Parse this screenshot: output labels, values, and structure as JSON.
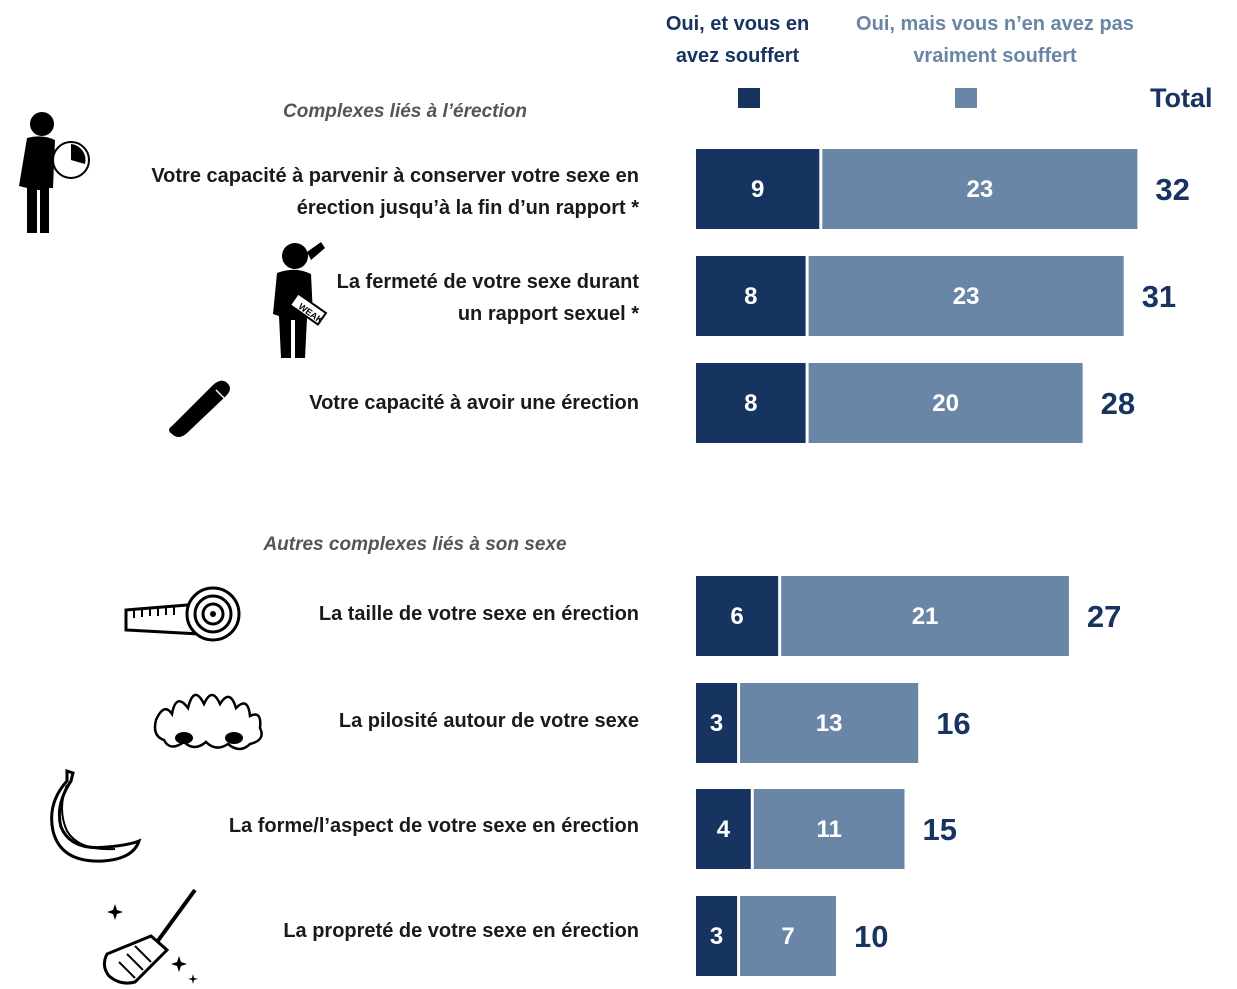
{
  "legend": {
    "series1_label": "Oui, et vous en avez souffert",
    "series2_label": "Oui, mais vous n’en avez pas vraiment souffert",
    "total_label": "Total"
  },
  "sections": [
    {
      "title": "Complexes liés à l’érection"
    },
    {
      "title": "Autres complexes liés à son sexe"
    }
  ],
  "items": [
    {
      "label": "Votre capacité à parvenir à conserver votre sexe en érection jusqu’à la fin d’un rapport *",
      "icon": "man-clock-icon"
    },
    {
      "label": "La fermeté de votre sexe durant un rapport sexuel *",
      "icon": "weak-man-icon"
    },
    {
      "label": "Votre capacité à avoir une érection",
      "icon": "penis-icon"
    },
    {
      "label": "La taille de votre sexe en érection",
      "icon": "tape-measure-icon"
    },
    {
      "label": "La pilosité autour de votre sexe",
      "icon": "hair-bush-icon"
    },
    {
      "label": "La forme/l’aspect de votre sexe en érection",
      "icon": "banana-icon"
    },
    {
      "label": "La propreté de votre sexe en érection",
      "icon": "broom-icon"
    }
  ],
  "colors": {
    "series1": "#17335f",
    "series2": "#6a86a6",
    "total": "#17335f",
    "header2": "#6a86a6"
  },
  "chart_data": {
    "type": "bar",
    "orientation": "horizontal",
    "stacked": true,
    "categories": [
      "Votre capacité à parvenir à conserver votre sexe en érection jusqu’à la fin d’un rapport *",
      "La fermeté de votre sexe durant un rapport sexuel *",
      "Votre capacité à avoir une érection",
      "La taille de votre sexe en érection",
      "La pilosité autour de votre sexe",
      "La forme/l’aspect de votre sexe en érection",
      "La propreté de votre sexe en érection"
    ],
    "series": [
      {
        "name": "Oui, et vous en avez souffert",
        "values": [
          9,
          8,
          8,
          6,
          3,
          4,
          3
        ]
      },
      {
        "name": "Oui, mais vous n’en avez pas vraiment souffert",
        "values": [
          23,
          23,
          20,
          21,
          13,
          11,
          7
        ]
      }
    ],
    "totals": [
      32,
      31,
      28,
      27,
      16,
      15,
      10
    ]
  }
}
